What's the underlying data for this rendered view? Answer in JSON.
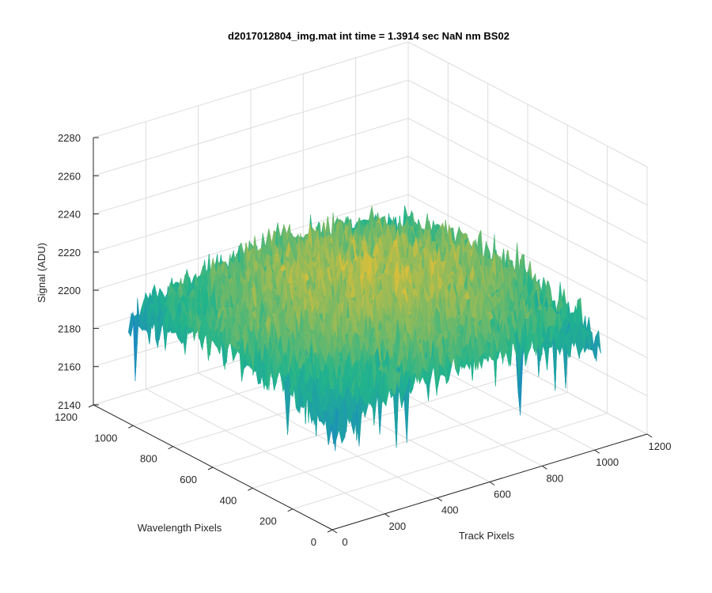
{
  "chart_data": {
    "type": "surface3d",
    "title": "d2017012804_img.mat int time = 1.3914 sec  NaN nm BS02",
    "xlabel": "Track Pixels",
    "ylabel": "Wavelength Pixels",
    "zlabel": "Signal (ADU)",
    "xlim": [
      0,
      1200
    ],
    "ylim": [
      0,
      1200
    ],
    "zlim": [
      2140,
      2280
    ],
    "xticks": [
      0,
      200,
      400,
      600,
      800,
      1000,
      1200
    ],
    "yticks": [
      0,
      200,
      400,
      600,
      800,
      1000,
      1200
    ],
    "zticks": [
      2140,
      2160,
      2180,
      2200,
      2220,
      2240,
      2260,
      2280
    ],
    "grid": true,
    "colormap": "parula",
    "surface": {
      "x_range": [
        0,
        1024
      ],
      "y_range": [
        0,
        1024
      ],
      "base_level": 2210,
      "center_level": 2222,
      "edge_low_level": 2190,
      "noise_amplitude": 14
    },
    "colors": {
      "high": "#f0c030",
      "mid": "#22b48c",
      "low": "#1a7ed0"
    }
  }
}
